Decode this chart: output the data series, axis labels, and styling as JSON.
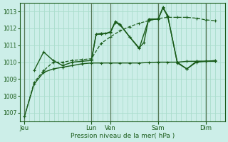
{
  "title": "",
  "xlabel": "Pression niveau de la mer( hPa )",
  "bg_color": "#cceee8",
  "grid_color": "#aaddcc",
  "line_color": "#1a5c1a",
  "sep_color": "#557755",
  "ylim": [
    1006.5,
    1013.5
  ],
  "yticks": [
    1007,
    1008,
    1009,
    1010,
    1011,
    1012,
    1013
  ],
  "x_day_labels": [
    "Jeu",
    "Lun",
    "Ven",
    "Sam",
    "Dim"
  ],
  "x_day_positions": [
    0,
    14,
    18,
    28,
    38
  ],
  "x_sep_positions": [
    0,
    14,
    18,
    28,
    38
  ],
  "xlim": [
    -1,
    42
  ],
  "num_minor_x": 42,
  "lines": [
    {
      "x": [
        0,
        2,
        4,
        6,
        8,
        10,
        12,
        14,
        16,
        18,
        20,
        22,
        24,
        26,
        28,
        30,
        32,
        34,
        36,
        38,
        40
      ],
      "y": [
        1006.8,
        1008.7,
        1009.4,
        1009.6,
        1009.7,
        1009.8,
        1009.9,
        1009.95,
        1009.95,
        1009.95,
        1009.95,
        1009.95,
        1009.95,
        1009.98,
        1010.0,
        1010.0,
        1010.0,
        1010.05,
        1010.05,
        1010.05,
        1010.05
      ],
      "style": "-",
      "lw": 1.0,
      "marker": "+"
    },
    {
      "x": [
        2,
        4,
        6,
        8,
        10,
        12,
        14,
        15,
        16,
        18,
        19,
        20,
        22,
        24,
        26,
        28,
        29,
        30,
        32,
        34,
        36,
        38,
        40
      ],
      "y": [
        1009.5,
        1010.6,
        1010.1,
        1009.8,
        1010.0,
        1010.05,
        1010.1,
        1011.65,
        1011.65,
        1011.75,
        1012.35,
        1012.2,
        1011.5,
        1010.8,
        1012.5,
        1012.55,
        1013.2,
        1012.7,
        1010.0,
        1009.6,
        1010.05,
        1010.05,
        1010.1
      ],
      "style": "-",
      "lw": 1.0,
      "marker": "+"
    },
    {
      "x": [
        14,
        15,
        16,
        17,
        18,
        19,
        20,
        22,
        24,
        25,
        26,
        28,
        29,
        30,
        32,
        34,
        36,
        38,
        40
      ],
      "y": [
        1010.1,
        1011.65,
        1011.7,
        1011.7,
        1011.8,
        1012.4,
        1012.25,
        1011.5,
        1010.85,
        1011.15,
        1012.55,
        1012.55,
        1013.25,
        1012.75,
        1009.95,
        1009.6,
        1010.0,
        1010.05,
        1010.05
      ],
      "style": "-",
      "lw": 1.0,
      "marker": "+"
    },
    {
      "x": [
        0,
        2,
        4,
        6,
        8,
        10,
        12,
        14,
        16,
        18,
        20,
        22,
        24,
        26,
        28,
        30,
        32,
        34,
        36,
        38,
        40
      ],
      "y": [
        1006.8,
        1008.8,
        1009.5,
        1010.0,
        1010.0,
        1010.1,
        1010.15,
        1010.2,
        1011.1,
        1011.5,
        1011.85,
        1012.1,
        1012.3,
        1012.45,
        1012.58,
        1012.65,
        1012.65,
        1012.65,
        1012.6,
        1012.5,
        1012.45
      ],
      "style": "--",
      "lw": 0.9,
      "marker": "+"
    }
  ]
}
